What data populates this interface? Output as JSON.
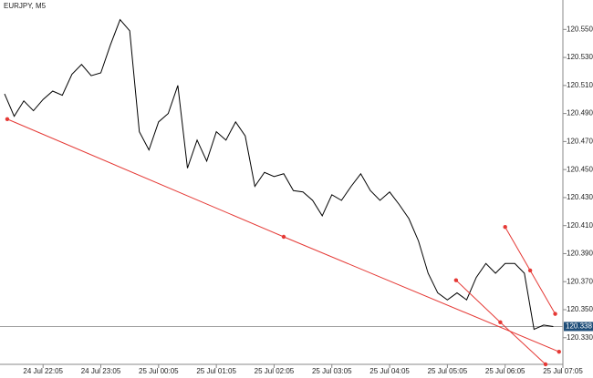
{
  "chart_data": {
    "type": "line",
    "title": "EURJPY, M5",
    "categories": [
      null,
      null,
      null,
      null,
      "24 Jul 22:05",
      null,
      null,
      null,
      null,
      null,
      "24 Jul 23:05",
      null,
      null,
      null,
      null,
      null,
      "25 Jul 00:05",
      null,
      null,
      null,
      null,
      null,
      "25 Jul 01:05",
      null,
      null,
      null,
      null,
      null,
      "25 Jul 02:05",
      null,
      null,
      null,
      null,
      null,
      "25 Jul 03:05",
      null,
      null,
      null,
      null,
      null,
      "25 Jul 04:05",
      null,
      null,
      null,
      null,
      null,
      "25 Jul 05:05",
      null,
      null,
      null,
      null,
      null,
      "25 Jul 06:05",
      null,
      null,
      null,
      null,
      null,
      "25 Jul 07:05"
    ],
    "series": [
      {
        "name": "EURJPY",
        "color": "#000000",
        "values": [
          120.504,
          120.488,
          120.499,
          120.492,
          120.5,
          120.506,
          120.503,
          120.518,
          120.525,
          120.517,
          120.519,
          120.539,
          120.557,
          120.549,
          120.477,
          120.464,
          120.484,
          120.49,
          120.51,
          120.451,
          120.471,
          120.456,
          120.477,
          120.471,
          120.484,
          120.474,
          120.438,
          120.448,
          120.445,
          120.447,
          120.435,
          120.434,
          120.428,
          120.417,
          120.432,
          120.428,
          120.438,
          120.447,
          120.435,
          120.428,
          120.434,
          120.425,
          120.415,
          120.399,
          120.376,
          120.362,
          120.357,
          120.362,
          120.357,
          120.373,
          120.383,
          120.376,
          120.383,
          120.383,
          120.376,
          120.336,
          120.339,
          120.338,
          null
        ]
      }
    ],
    "last_price": 120.338,
    "last_price_color": "#1f4e79",
    "trendline_color": "#e53935",
    "trendlines": [
      {
        "x": [
          0.28,
          29,
          57.6
        ],
        "y": [
          120.486,
          120.402,
          120.32
        ]
      },
      {
        "x": [
          46.9,
          51.5,
          56.2
        ],
        "y": [
          120.371,
          120.341,
          120.311
        ]
      },
      {
        "x": [
          52.0,
          54.6,
          57.2
        ],
        "y": [
          120.409,
          120.378,
          120.347
        ]
      }
    ],
    "ylim": [
      120.311,
      120.571
    ],
    "yticks": [
      {
        "value": 120.33,
        "label": "120.330"
      },
      {
        "value": 120.35,
        "label": "120.350"
      },
      {
        "value": 120.37,
        "label": "120.370"
      },
      {
        "value": 120.39,
        "label": "120.390"
      },
      {
        "value": 120.41,
        "label": "120.410"
      },
      {
        "value": 120.43,
        "label": "120.430"
      },
      {
        "value": 120.45,
        "label": "120.450"
      },
      {
        "value": 120.47,
        "label": "120.470"
      },
      {
        "value": 120.49,
        "label": "120.490"
      },
      {
        "value": 120.51,
        "label": "120.510"
      },
      {
        "value": 120.53,
        "label": "120.530"
      },
      {
        "value": 120.55,
        "label": "120.550"
      }
    ],
    "grid": false
  }
}
